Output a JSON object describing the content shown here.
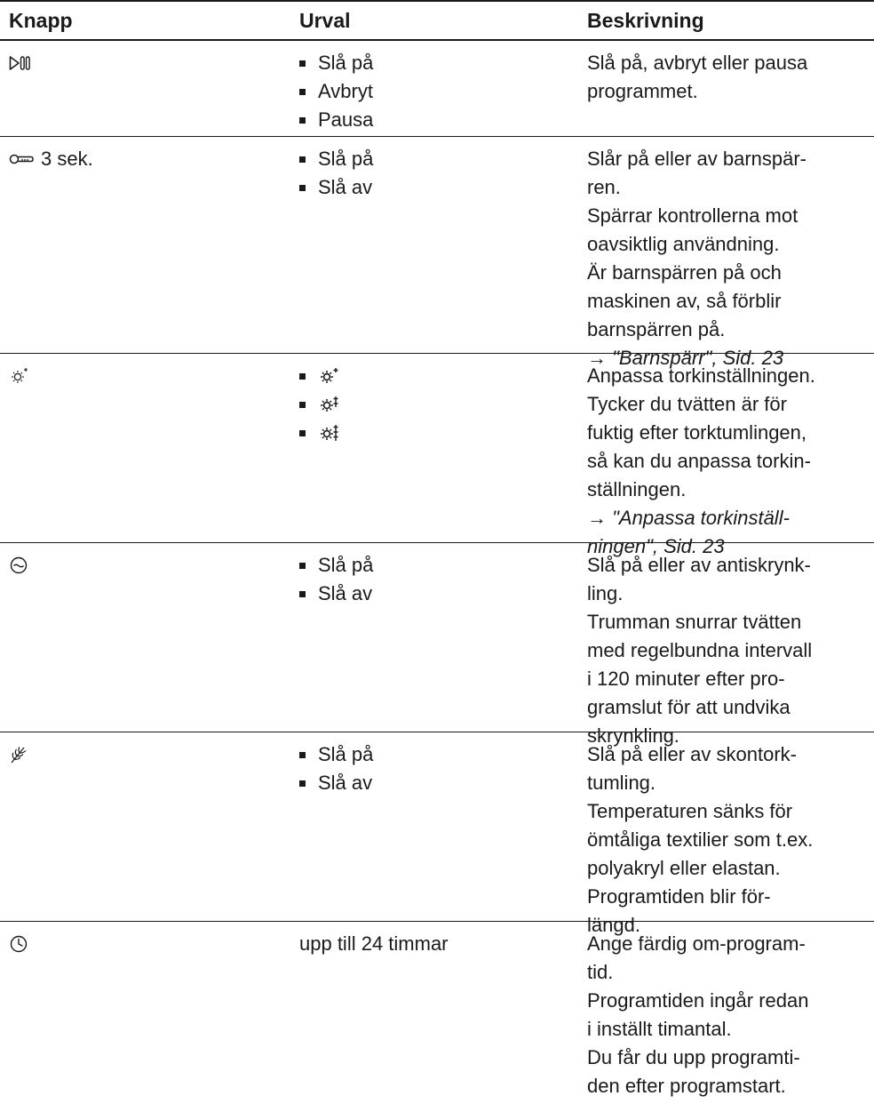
{
  "table": {
    "headers": {
      "knapp": "Knapp",
      "urval": "Urval",
      "beskrivning": "Beskrivning"
    },
    "rows": [
      {
        "knapp_icon": "play-pause-icon",
        "knapp_text": "",
        "urval": [
          "Slå på",
          "Avbryt",
          "Pausa"
        ],
        "beskrivning": [
          "Slå på, avbryt eller pausa",
          "programmet."
        ]
      },
      {
        "knapp_icon": "key-icon",
        "knapp_text": "3 sek.",
        "urval": [
          "Slå på",
          "Slå av"
        ],
        "beskrivning": [
          "Slår på eller av barnspär-",
          "ren.",
          "Spärrar kontrollerna mot",
          "oavsiktlig användning.",
          "Är barnspärren på och",
          "maskinen av, så förblir",
          "barnspärren på."
        ],
        "ref": {
          "arrow": "→",
          "text": "\"Barnspärr\", Sid. 23"
        }
      },
      {
        "knapp_icon": "dryness-icon",
        "knapp_text": "",
        "urval_icons": [
          "dryness-level-1-icon",
          "dryness-level-2-icon",
          "dryness-level-3-icon"
        ],
        "beskrivning": [
          "Anpassa torkinställningen.",
          "Tycker du tvätten är för",
          "fuktig efter torktumlingen,",
          "så kan du anpassa torkin-",
          "ställningen."
        ],
        "ref": {
          "arrow": "→",
          "text": "\"Anpassa torkinställ-",
          "text2": "ningen\", Sid. 23"
        }
      },
      {
        "knapp_icon": "anti-crease-icon",
        "knapp_text": "",
        "urval": [
          "Slå på",
          "Slå av"
        ],
        "beskrivning": [
          "Slå på eller av antiskrynk-",
          "ling.",
          "Trumman snurrar tvätten",
          "med regelbundna intervall",
          "i 120 minuter efter pro-",
          "gramslut för att undvika",
          "skrynkling."
        ]
      },
      {
        "knapp_icon": "gentle-dry-icon",
        "knapp_text": "",
        "urval": [
          "Slå på",
          "Slå av"
        ],
        "beskrivning": [
          "Slå på eller av skontork-",
          "tumling.",
          "Temperaturen sänks för",
          "ömtåliga textilier som t.ex.",
          "polyakryl eller elastan.",
          "Programtiden blir för-",
          "längd."
        ]
      },
      {
        "knapp_icon": "clock-icon",
        "knapp_text": "",
        "urval_text": "upp till 24 timmar",
        "beskrivning": [
          "Ange färdig om-program-",
          "tid.",
          "Programtiden ingår redan",
          "i inställt timantal.",
          "Du får du upp programti-",
          "den efter programstart."
        ]
      }
    ]
  }
}
